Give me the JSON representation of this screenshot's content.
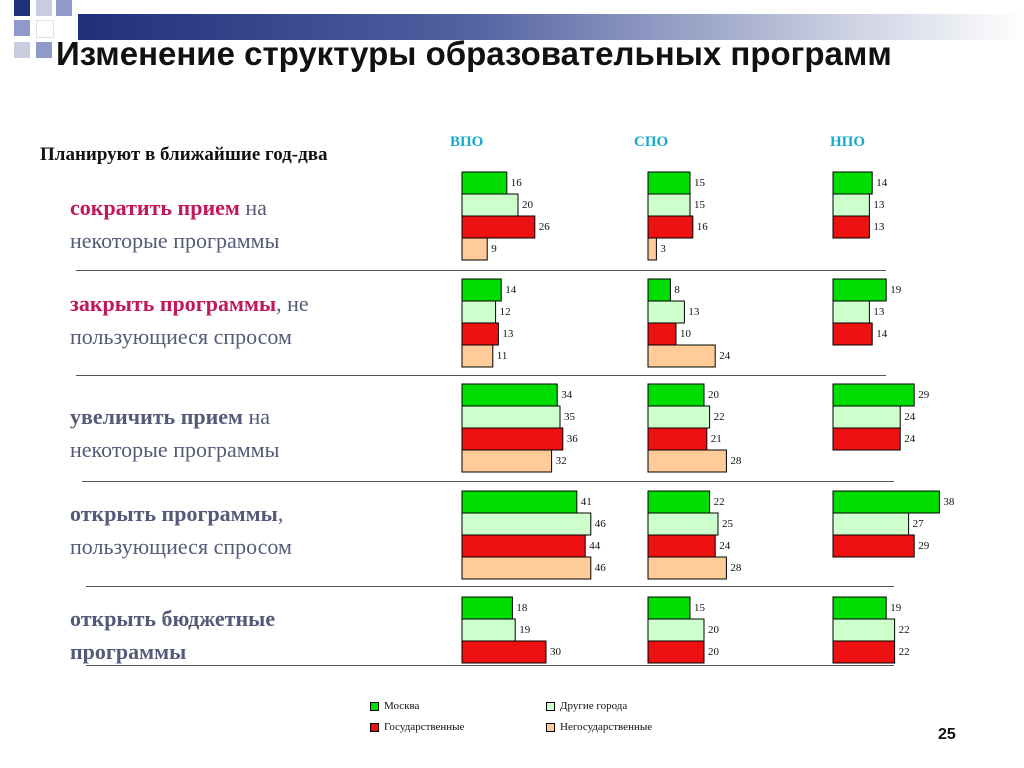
{
  "slide": {
    "title": "Изменение структуры образовательных программ",
    "subtitle": "Планируют в ближайшие год-два",
    "page_number": "25"
  },
  "colors": {
    "moscow": "#00dd00",
    "other_cities": "#ccffcc",
    "state": "#ee1111",
    "nonstate": "#ffcc99",
    "accent_label": "#c2185b",
    "label_text": "#555a78",
    "header_text": "#14a8cc"
  },
  "rows": [
    {
      "bold": "сократить прием",
      "rest": " на",
      "line2": "некоторые программы",
      "bold_line2": false,
      "accent": true
    },
    {
      "bold": "закрыть программы",
      "rest": ", не",
      "line2": "пользующиеся спросом",
      "bold_line2": false,
      "accent": true
    },
    {
      "bold": "увеличить прием",
      "rest": " на",
      "line2": "некоторые программы",
      "bold_line2": false,
      "accent": false
    },
    {
      "bold": "открыть программы",
      "rest": ",",
      "line2": "пользующиеся спросом",
      "bold_line2": false,
      "accent": false
    },
    {
      "bold": "открыть бюджетные",
      "rest": "",
      "line2": "программы",
      "bold_line2": true,
      "accent": false
    }
  ],
  "chart_data": {
    "type": "bar",
    "orientation": "horizontal",
    "columns": [
      "ВПО",
      "СПО",
      "НПО"
    ],
    "series_names": [
      "Москва",
      "Другие города",
      "Государственные",
      "Негосударственные"
    ],
    "groups": [
      {
        "ВПО": [
          16,
          20,
          26,
          9
        ],
        "СПО": [
          15,
          15,
          16,
          3
        ],
        "НПО": [
          14,
          13,
          13
        ]
      },
      {
        "ВПО": [
          14,
          12,
          13,
          11
        ],
        "СПО": [
          8,
          13,
          10,
          24
        ],
        "НПО": [
          19,
          13,
          14
        ]
      },
      {
        "ВПО": [
          34,
          35,
          36,
          32
        ],
        "СПО": [
          20,
          22,
          21,
          28
        ],
        "НПО": [
          29,
          24,
          24
        ]
      },
      {
        "ВПО": [
          41,
          46,
          44,
          46
        ],
        "СПО": [
          22,
          25,
          24,
          28
        ],
        "НПО": [
          38,
          27,
          29
        ]
      },
      {
        "ВПО": [
          18,
          19,
          30
        ],
        "СПО": [
          15,
          20,
          20
        ],
        "НПО": [
          19,
          22,
          22
        ]
      }
    ]
  }
}
